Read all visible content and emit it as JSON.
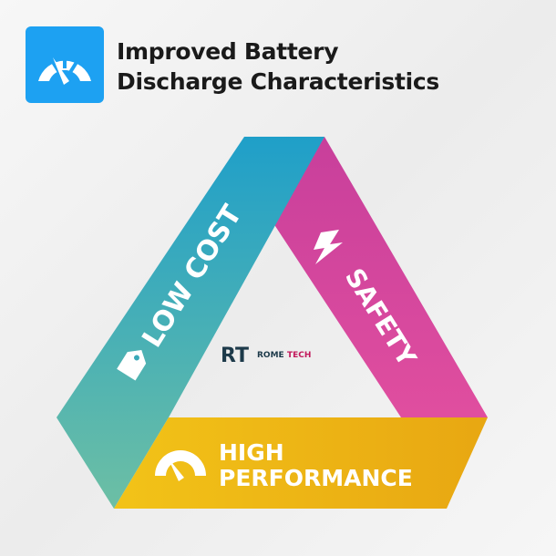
{
  "header": {
    "title_line1": "Improved Battery",
    "title_line2": "Discharge Characteristics",
    "icon": "speedometer-icon",
    "icon_bg": "#1da1f2"
  },
  "diagram": {
    "left": {
      "label": "LOW COST",
      "icon": "price-tag-icon",
      "colors": [
        "#1f9fc9",
        "#6dbfa4"
      ]
    },
    "right": {
      "label": "SAFETY",
      "icon": "lightning-icon",
      "colors": [
        "#c83f9b",
        "#e04e9f"
      ]
    },
    "bottom": {
      "label_line1": "HIGH",
      "label_line2": "PERFORMANCE",
      "icon": "speedometer-icon",
      "colors": [
        "#f2c318",
        "#e8a712"
      ]
    }
  },
  "logo": {
    "mark": "RT",
    "text1": "ROME",
    "text2": "TECH"
  }
}
